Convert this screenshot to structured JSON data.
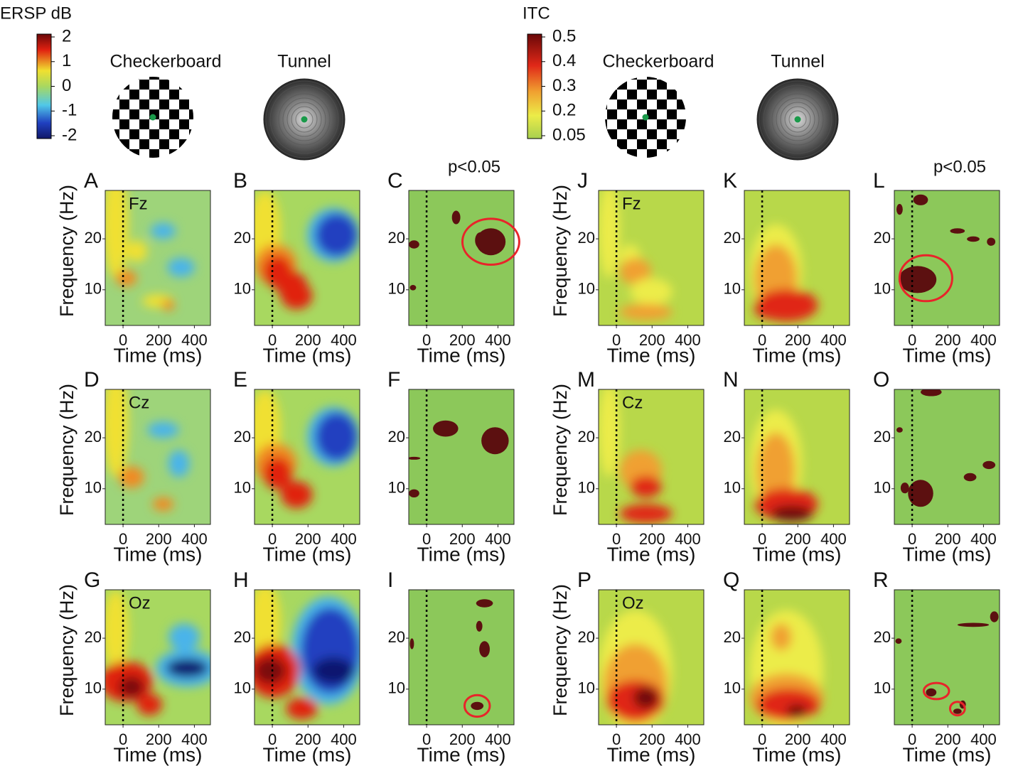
{
  "chart_data": [
    {
      "type": "heatmap",
      "panel": "A",
      "label": "Fz",
      "ylabel": "Frequency (Hz)",
      "xlabel": "Time (ms)",
      "xlim": [
        -100,
        490
      ],
      "ylim": [
        3,
        29.5
      ],
      "xticks": [
        0,
        200,
        400
      ],
      "yticks": [
        10,
        20
      ]
    },
    {
      "type": "heatmap",
      "panel": "B",
      "xlabel": "Time (ms)",
      "xlim": [
        -100,
        490
      ],
      "ylim": [
        3,
        29.5
      ],
      "xticks": [
        0,
        200,
        400
      ],
      "yticks": [
        10,
        20
      ]
    },
    {
      "type": "heatmap",
      "panel": "C",
      "title": "p<0.05",
      "xlabel": "Time (ms)",
      "xlim": [
        -100,
        490
      ],
      "ylim": [
        3,
        29.5
      ],
      "xticks": [
        0,
        200,
        400
      ],
      "yticks": [
        10,
        20
      ]
    },
    {
      "type": "heatmap",
      "panel": "D",
      "label": "Cz",
      "ylabel": "Frequency (Hz)",
      "xlabel": "Time (ms)",
      "xlim": [
        -100,
        490
      ],
      "ylim": [
        3,
        29.5
      ],
      "xticks": [
        0,
        200,
        400
      ],
      "yticks": [
        10,
        20
      ]
    },
    {
      "type": "heatmap",
      "panel": "E",
      "xlabel": "Time (ms)",
      "xlim": [
        -100,
        490
      ],
      "ylim": [
        3,
        29.5
      ],
      "xticks": [
        0,
        200,
        400
      ],
      "yticks": [
        10,
        20
      ]
    },
    {
      "type": "heatmap",
      "panel": "F",
      "xlabel": "Time (ms)",
      "xlim": [
        -100,
        490
      ],
      "ylim": [
        3,
        29.5
      ],
      "xticks": [
        0,
        200,
        400
      ],
      "yticks": [
        10,
        20
      ]
    },
    {
      "type": "heatmap",
      "panel": "G",
      "label": "Oz",
      "ylabel": "Frequency (Hz)",
      "xlabel": "Time (ms)",
      "xlim": [
        -100,
        490
      ],
      "ylim": [
        3,
        29.5
      ],
      "xticks": [
        0,
        200,
        400
      ],
      "yticks": [
        10,
        20
      ]
    },
    {
      "type": "heatmap",
      "panel": "H",
      "xlabel": "Time (ms)",
      "xlim": [
        -100,
        490
      ],
      "ylim": [
        3,
        29.5
      ],
      "xticks": [
        0,
        200,
        400
      ],
      "yticks": [
        10,
        20
      ]
    },
    {
      "type": "heatmap",
      "panel": "I",
      "xlabel": "Time (ms)",
      "xlim": [
        -100,
        490
      ],
      "ylim": [
        3,
        29.5
      ],
      "xticks": [
        0,
        200,
        400
      ],
      "yticks": [
        10,
        20
      ]
    },
    {
      "type": "heatmap",
      "panel": "J",
      "label": "Fz",
      "ylabel": "Frequency (Hz)",
      "xlabel": "Time (ms)",
      "xlim": [
        -100,
        490
      ],
      "ylim": [
        3,
        29.5
      ],
      "xticks": [
        0,
        200,
        400
      ],
      "yticks": [
        10,
        20
      ]
    },
    {
      "type": "heatmap",
      "panel": "K",
      "xlabel": "Time (ms)",
      "xlim": [
        -100,
        490
      ],
      "ylim": [
        3,
        29.5
      ],
      "xticks": [
        0,
        200,
        400
      ],
      "yticks": [
        10,
        20
      ]
    },
    {
      "type": "heatmap",
      "panel": "L",
      "title": "p<0.05",
      "xlabel": "Time (ms)",
      "xlim": [
        -100,
        490
      ],
      "ylim": [
        3,
        29.5
      ],
      "xticks": [
        0,
        200,
        400
      ],
      "yticks": [
        10,
        20
      ]
    },
    {
      "type": "heatmap",
      "panel": "M",
      "label": "Cz",
      "ylabel": "Frequency (Hz)",
      "xlabel": "Time (ms)",
      "xlim": [
        -100,
        490
      ],
      "ylim": [
        3,
        29.5
      ],
      "xticks": [
        0,
        200,
        400
      ],
      "yticks": [
        10,
        20
      ]
    },
    {
      "type": "heatmap",
      "panel": "N",
      "xlabel": "Time (ms)",
      "xlim": [
        -100,
        490
      ],
      "ylim": [
        3,
        29.5
      ],
      "xticks": [
        0,
        200,
        400
      ],
      "yticks": [
        10,
        20
      ]
    },
    {
      "type": "heatmap",
      "panel": "O",
      "xlabel": "Time (ms)",
      "xlim": [
        -100,
        490
      ],
      "ylim": [
        3,
        29.5
      ],
      "xticks": [
        0,
        200,
        400
      ],
      "yticks": [
        10,
        20
      ]
    },
    {
      "type": "heatmap",
      "panel": "P",
      "label": "Oz",
      "ylabel": "Frequency (Hz)",
      "xlabel": "Time (ms)",
      "xlim": [
        -100,
        490
      ],
      "ylim": [
        3,
        29.5
      ],
      "xticks": [
        0,
        200,
        400
      ],
      "yticks": [
        10,
        20
      ]
    },
    {
      "type": "heatmap",
      "panel": "Q",
      "xlabel": "Time (ms)",
      "xlim": [
        -100,
        490
      ],
      "ylim": [
        3,
        29.5
      ],
      "xticks": [
        0,
        200,
        400
      ],
      "yticks": [
        10,
        20
      ]
    },
    {
      "type": "heatmap",
      "panel": "R",
      "xlabel": "Time (ms)",
      "xlim": [
        -100,
        490
      ],
      "ylim": [
        3,
        29.5
      ],
      "xticks": [
        0,
        200,
        400
      ],
      "yticks": [
        10,
        20
      ]
    }
  ],
  "colorbars": [
    {
      "title": "ERSP dB",
      "ticks": [
        2,
        1,
        0,
        -1,
        -2
      ]
    },
    {
      "title": "ITC",
      "ticks": [
        0.5,
        0.4,
        0.3,
        0.2,
        0.05
      ]
    }
  ],
  "stimuli": [
    {
      "label": "Checkerboard"
    },
    {
      "label": "Tunnel"
    },
    {
      "label": "Checkerboard"
    },
    {
      "label": "Tunnel"
    }
  ]
}
